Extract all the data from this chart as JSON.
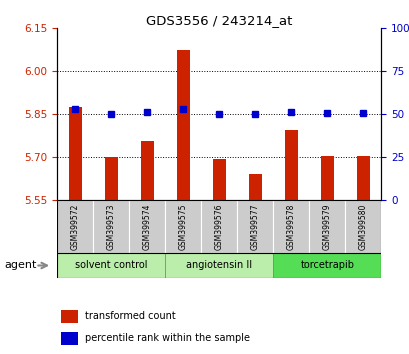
{
  "title": "GDS3556 / 243214_at",
  "samples": [
    "GSM399572",
    "GSM399573",
    "GSM399574",
    "GSM399575",
    "GSM399576",
    "GSM399577",
    "GSM399578",
    "GSM399579",
    "GSM399580"
  ],
  "red_values": [
    5.875,
    5.7,
    5.755,
    6.075,
    5.695,
    5.64,
    5.795,
    5.705,
    5.705
  ],
  "blue_values": [
    5.868,
    5.852,
    5.857,
    5.868,
    5.851,
    5.852,
    5.856,
    5.853,
    5.853
  ],
  "ylim_left": [
    5.55,
    6.15
  ],
  "ylim_right": [
    0,
    100
  ],
  "yticks_left": [
    5.55,
    5.7,
    5.85,
    6.0,
    6.15
  ],
  "yticks_right": [
    0,
    25,
    50,
    75,
    100
  ],
  "bar_color": "#cc2200",
  "dot_color": "#0000cc",
  "bar_bottom": 5.55,
  "groups": [
    {
      "label": "solvent control",
      "start": 0,
      "end": 2,
      "color": "#bbeeaa"
    },
    {
      "label": "angiotensin II",
      "start": 3,
      "end": 5,
      "color": "#bbeeaa"
    },
    {
      "label": "torcetrapib",
      "start": 6,
      "end": 8,
      "color": "#55dd55"
    }
  ],
  "agent_label": "agent",
  "legend_red": "transformed count",
  "legend_blue": "percentile rank within the sample",
  "tick_label_color_left": "#cc2200",
  "tick_label_color_right": "#0000cc",
  "sample_box_color": "#cccccc",
  "grid_yticks": [
    5.7,
    5.85,
    6.0
  ]
}
